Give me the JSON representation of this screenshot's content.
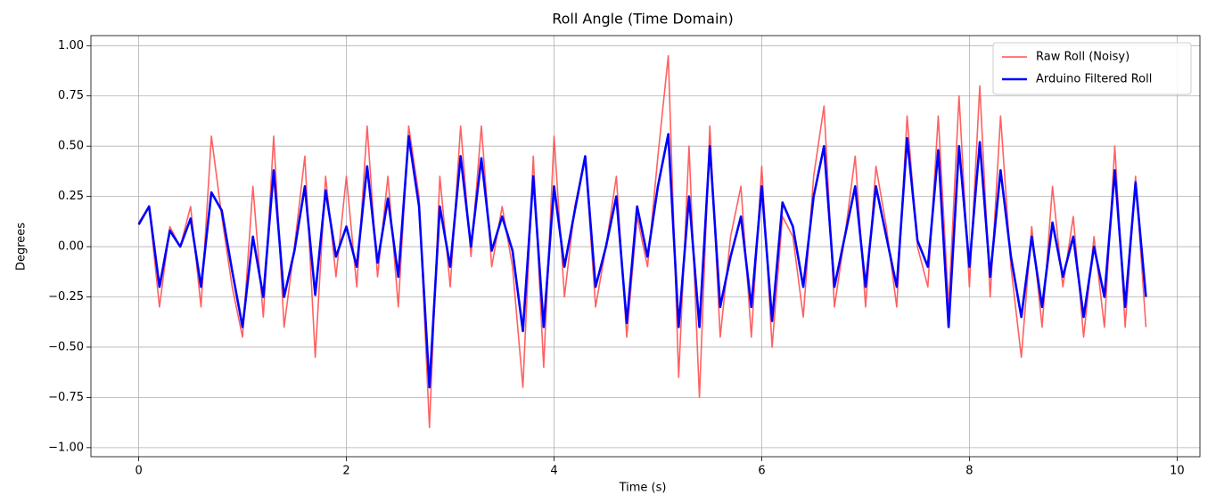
{
  "chart_data": {
    "type": "line",
    "title": "Roll Angle (Time Domain)",
    "x_label": "Time (s)",
    "y_label": "Degrees",
    "x": [
      0.0,
      0.1,
      0.2,
      0.3,
      0.4,
      0.5,
      0.6,
      0.7,
      0.8,
      0.9,
      1.0,
      1.1,
      1.2,
      1.3,
      1.4,
      1.5,
      1.6,
      1.7,
      1.8,
      1.9,
      2.0,
      2.1,
      2.2,
      2.3,
      2.4,
      2.5,
      2.6,
      2.7,
      2.8,
      2.9,
      3.0,
      3.1,
      3.2,
      3.3,
      3.4,
      3.5,
      3.6,
      3.7,
      3.8,
      3.9,
      4.0,
      4.1,
      4.2,
      4.3,
      4.4,
      4.5,
      4.6,
      4.7,
      4.8,
      4.9,
      5.0,
      5.1,
      5.2,
      5.3,
      5.4,
      5.5,
      5.6,
      5.7,
      5.8,
      5.9,
      6.0,
      6.1,
      6.2,
      6.3,
      6.4,
      6.5,
      6.6,
      6.7,
      6.8,
      6.9,
      7.0,
      7.1,
      7.2,
      7.3,
      7.4,
      7.5,
      7.6,
      7.7,
      7.8,
      7.9,
      8.0,
      8.1,
      8.2,
      8.3,
      8.4,
      8.5,
      8.6,
      8.7,
      8.8,
      8.9,
      9.0,
      9.1,
      9.2,
      9.3,
      9.4,
      9.5,
      9.6,
      9.7
    ],
    "series": [
      {
        "name": "Raw Roll (Noisy)",
        "color": "#ff5050",
        "width": 1.6,
        "values": [
          0.12,
          0.2,
          -0.3,
          0.1,
          0.0,
          0.2,
          -0.3,
          0.55,
          0.15,
          -0.2,
          -0.45,
          0.3,
          -0.35,
          0.55,
          -0.4,
          0.0,
          0.45,
          -0.55,
          0.35,
          -0.15,
          0.35,
          -0.2,
          0.6,
          -0.15,
          0.35,
          -0.3,
          0.6,
          0.25,
          -0.9,
          0.35,
          -0.2,
          0.6,
          -0.05,
          0.6,
          -0.1,
          0.2,
          -0.1,
          -0.7,
          0.45,
          -0.6,
          0.55,
          -0.25,
          0.2,
          0.45,
          -0.3,
          0.0,
          0.35,
          -0.45,
          0.15,
          -0.1,
          0.45,
          0.95,
          -0.65,
          0.5,
          -0.75,
          0.6,
          -0.45,
          0.05,
          0.3,
          -0.45,
          0.4,
          -0.5,
          0.15,
          0.05,
          -0.35,
          0.35,
          0.7,
          -0.3,
          0.05,
          0.45,
          -0.3,
          0.4,
          0.1,
          -0.3,
          0.65,
          0.0,
          -0.2,
          0.65,
          -0.3,
          0.75,
          -0.2,
          0.8,
          -0.25,
          0.65,
          -0.1,
          -0.55,
          0.1,
          -0.4,
          0.3,
          -0.2,
          0.15,
          -0.45,
          0.05,
          -0.4,
          0.5,
          -0.4,
          0.35,
          -0.4
        ]
      },
      {
        "name": "Arduino Filtered Roll",
        "color": "#0000ff",
        "width": 2.6,
        "values": [
          0.11,
          0.2,
          -0.2,
          0.08,
          0.0,
          0.14,
          -0.2,
          0.27,
          0.18,
          -0.12,
          -0.4,
          0.05,
          -0.25,
          0.38,
          -0.25,
          -0.02,
          0.3,
          -0.24,
          0.28,
          -0.05,
          0.1,
          -0.1,
          0.4,
          -0.08,
          0.24,
          -0.15,
          0.55,
          0.2,
          -0.7,
          0.2,
          -0.1,
          0.45,
          0.0,
          0.44,
          -0.02,
          0.15,
          -0.02,
          -0.42,
          0.35,
          -0.4,
          0.3,
          -0.1,
          0.18,
          0.45,
          -0.2,
          0.0,
          0.25,
          -0.38,
          0.2,
          -0.05,
          0.3,
          0.56,
          -0.4,
          0.25,
          -0.4,
          0.5,
          -0.3,
          -0.05,
          0.15,
          -0.3,
          0.3,
          -0.37,
          0.22,
          0.1,
          -0.2,
          0.25,
          0.5,
          -0.2,
          0.05,
          0.3,
          -0.2,
          0.3,
          0.05,
          -0.2,
          0.54,
          0.03,
          -0.1,
          0.48,
          -0.4,
          0.5,
          -0.1,
          0.52,
          -0.15,
          0.38,
          -0.05,
          -0.35,
          0.05,
          -0.3,
          0.12,
          -0.15,
          0.05,
          -0.35,
          0.0,
          -0.25,
          0.38,
          -0.3,
          0.32,
          -0.25
        ]
      }
    ],
    "xlim": [
      -0.46,
      10.22
    ],
    "ylim": [
      -1.045,
      1.05
    ],
    "xticks": [
      0,
      2,
      4,
      6,
      8,
      10
    ],
    "yticks": [
      {
        "value": -1.0,
        "label": "−1.00"
      },
      {
        "value": -0.75,
        "label": "−0.75"
      },
      {
        "value": -0.5,
        "label": "−0.50"
      },
      {
        "value": -0.25,
        "label": "−0.25"
      },
      {
        "value": 0,
        "label": "0.00"
      },
      {
        "value": 0.25,
        "label": "0.25"
      },
      {
        "value": 0.5,
        "label": "0.50"
      },
      {
        "value": 0.75,
        "label": "0.75"
      },
      {
        "value": 1.0,
        "label": "1.00"
      }
    ],
    "grid": true,
    "legend": "upper right"
  }
}
